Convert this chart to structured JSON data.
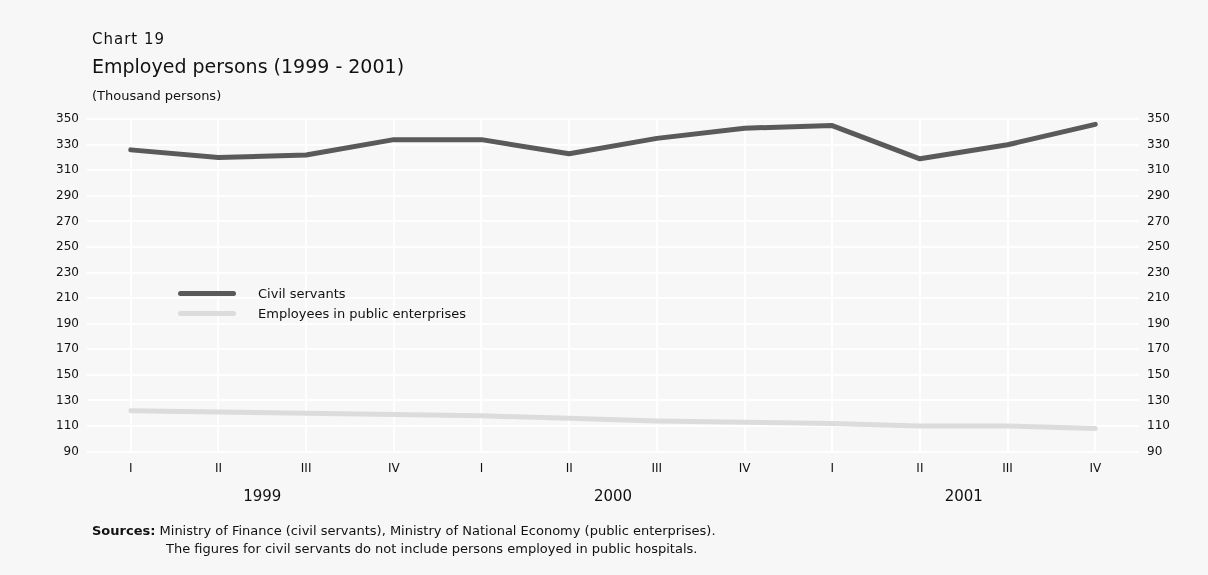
{
  "chart_data": {
    "type": "line",
    "title": "Employed persons (1999 - 2001)",
    "subtitle": "(Thousand persons)",
    "categories": [
      "I",
      "II",
      "III",
      "IV",
      "I",
      "II",
      "III",
      "IV",
      "I",
      "II",
      "III",
      "IV"
    ],
    "series": [
      {
        "name": "Civil servants",
        "color": "#5a5a5a",
        "values": [
          326,
          320,
          322,
          334,
          334,
          323,
          335,
          343,
          345,
          319,
          330,
          346
        ]
      },
      {
        "name": "Employees in public enterprises",
        "color": "#dcdcdc",
        "values": [
          122,
          121,
          120,
          119,
          118,
          116,
          114,
          113,
          112,
          110,
          110,
          108
        ]
      }
    ],
    "ylim": [
      90,
      350
    ],
    "yticks": [
      90,
      110,
      130,
      150,
      170,
      190,
      210,
      230,
      250,
      270,
      290,
      310,
      330,
      350
    ],
    "y2lim": [
      90,
      350
    ],
    "y2ticks": [
      90,
      110,
      130,
      150,
      170,
      190,
      210,
      230,
      250,
      270,
      290,
      310,
      330,
      350
    ],
    "grid": true,
    "legend": "left",
    "marker": "none",
    "line_style": "solid",
    "annotations": [
      "Chart 19",
      "1999",
      "2000",
      "2001",
      "Sources: Ministry of Finance (civil servants), Ministry of National Economy (public enterprises).\nThe figures for civil servants do not include persons employed in public hospitals."
    ]
  }
}
